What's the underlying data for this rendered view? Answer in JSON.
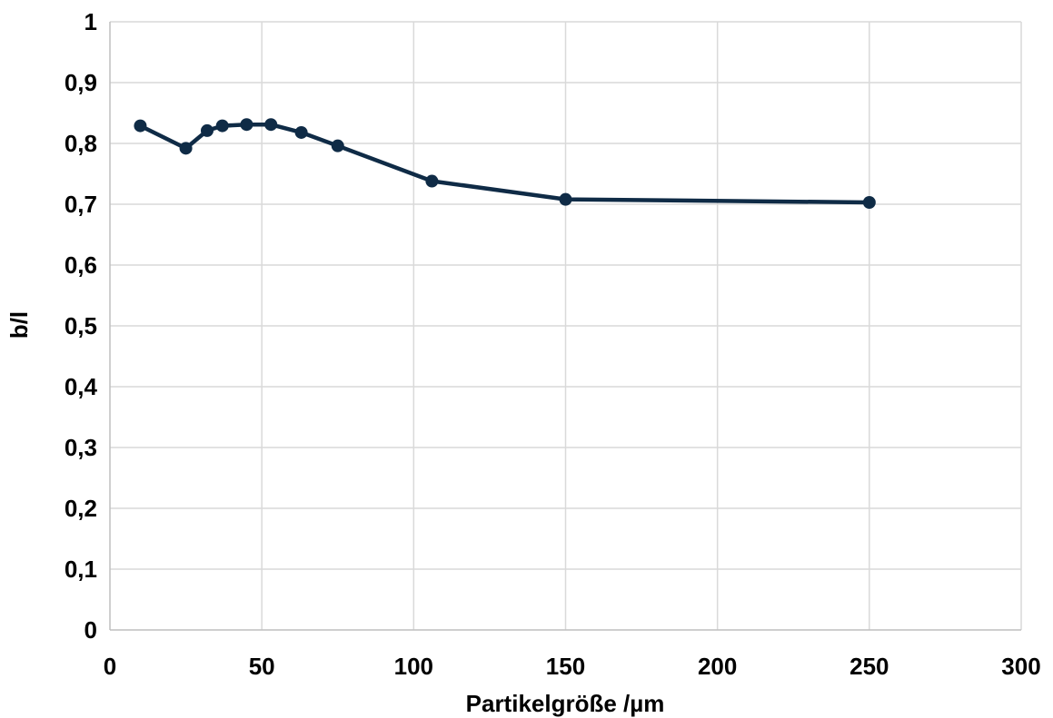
{
  "chart_data": {
    "type": "line",
    "title": "",
    "xlabel": "Partikelgröße /µm",
    "ylabel": "b/l",
    "xlim": [
      0,
      300
    ],
    "ylim": [
      0,
      1
    ],
    "x_ticks": [
      0,
      50,
      100,
      150,
      200,
      250,
      300
    ],
    "x_tick_labels": [
      "0",
      "50",
      "100",
      "150",
      "200",
      "250",
      "300"
    ],
    "y_ticks": [
      0,
      0.1,
      0.2,
      0.3,
      0.4,
      0.5,
      0.6,
      0.7,
      0.8,
      0.9,
      1
    ],
    "y_tick_labels": [
      "0",
      "0,1",
      "0,2",
      "0,3",
      "0,4",
      "0,5",
      "0,6",
      "0,7",
      "0,8",
      "0,9",
      "1"
    ],
    "grid": "vertical and horizontal",
    "legend": "none",
    "series": [
      {
        "color": "#0f2b46",
        "marker": "circle",
        "x": [
          10,
          25,
          32,
          37,
          45,
          53,
          63,
          75,
          106,
          150,
          250
        ],
        "y": [
          0.829,
          0.792,
          0.821,
          0.829,
          0.831,
          0.831,
          0.818,
          0.796,
          0.738,
          0.708,
          0.703
        ]
      }
    ]
  }
}
